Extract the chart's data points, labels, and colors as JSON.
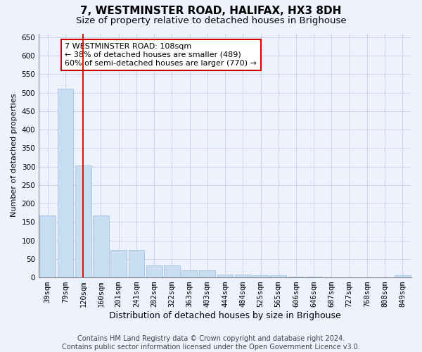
{
  "title": "7, WESTMINSTER ROAD, HALIFAX, HX3 8DH",
  "subtitle": "Size of property relative to detached houses in Brighouse",
  "xlabel": "Distribution of detached houses by size in Brighouse",
  "ylabel": "Number of detached properties",
  "categories": [
    "39sqm",
    "79sqm",
    "120sqm",
    "160sqm",
    "201sqm",
    "241sqm",
    "282sqm",
    "322sqm",
    "363sqm",
    "403sqm",
    "444sqm",
    "484sqm",
    "525sqm",
    "565sqm",
    "606sqm",
    "646sqm",
    "687sqm",
    "727sqm",
    "768sqm",
    "808sqm",
    "849sqm"
  ],
  "values": [
    168,
    510,
    302,
    168,
    75,
    75,
    32,
    32,
    20,
    20,
    8,
    8,
    5,
    5,
    3,
    3,
    0,
    0,
    0,
    0,
    5
  ],
  "bar_color": "#c9ddf2",
  "bar_edgecolor": "#a8c4e0",
  "property_line_x": 2.0,
  "property_line_color": "#cc0000",
  "annotation_text": "7 WESTMINSTER ROAD: 108sqm\n← 38% of detached houses are smaller (489)\n60% of semi-detached houses are larger (770) →",
  "annotation_box_facecolor": "#ffffff",
  "annotation_box_edgecolor": "#cc0000",
  "ylim": [
    0,
    660
  ],
  "yticks": [
    0,
    50,
    100,
    150,
    200,
    250,
    300,
    350,
    400,
    450,
    500,
    550,
    600,
    650
  ],
  "background_color": "#eef2fc",
  "plot_background": "#eef2fc",
  "grid_color": "#c8cee8",
  "footer_text": "Contains HM Land Registry data © Crown copyright and database right 2024.\nContains public sector information licensed under the Open Government Licence v3.0.",
  "title_fontsize": 11,
  "subtitle_fontsize": 9.5,
  "xlabel_fontsize": 9,
  "ylabel_fontsize": 8,
  "tick_fontsize": 7.5,
  "footer_fontsize": 7
}
